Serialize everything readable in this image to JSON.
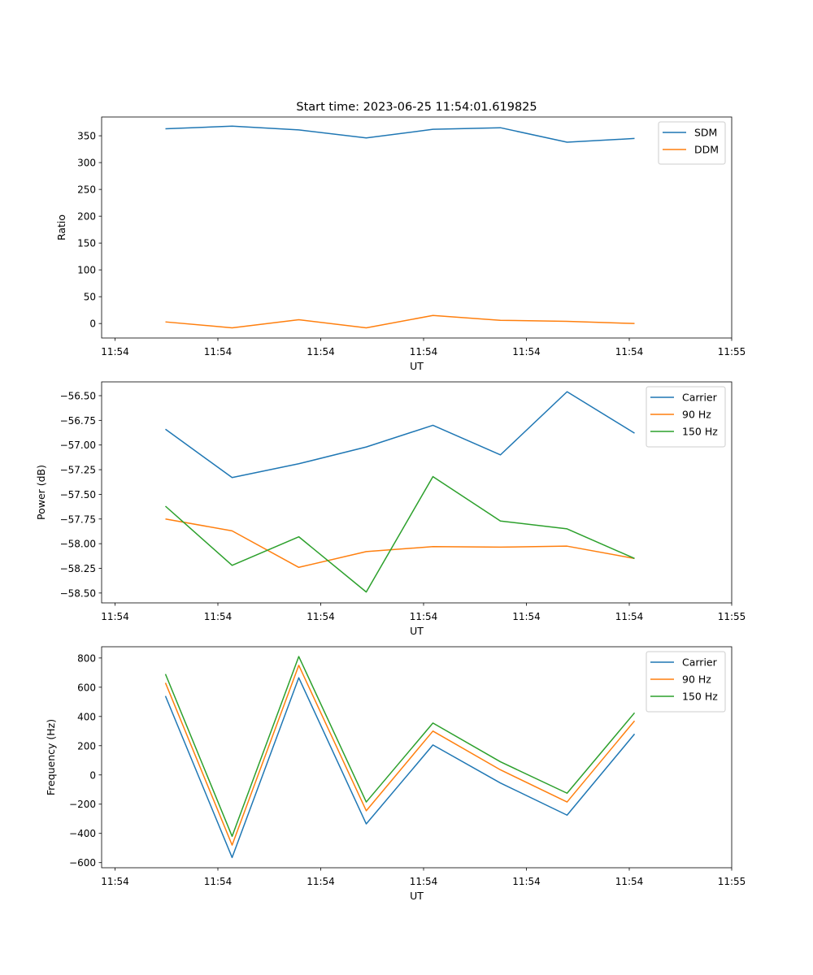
{
  "title": "Start time: 2023-06-25 11:54:01.619825",
  "colors": {
    "blue": "#1f77b4",
    "orange": "#ff7f0e",
    "green": "#2ca02c"
  },
  "x_tick_labels": [
    "11:54",
    "11:54",
    "11:54",
    "11:54",
    "11:54",
    "11:54",
    "11:55"
  ],
  "chart_data": [
    {
      "type": "line",
      "xlabel": "UT",
      "ylabel": "Ratio",
      "ylim": [
        -27,
        385
      ],
      "yticks": [
        0,
        50,
        100,
        150,
        200,
        250,
        300,
        350
      ],
      "ytick_labels": [
        "0",
        "50",
        "100",
        "150",
        "200",
        "250",
        "300",
        "350"
      ],
      "legend": "top-right",
      "grid": false,
      "series": [
        {
          "name": "SDM",
          "color": "#1f77b4",
          "values": [
            363,
            368,
            361,
            346,
            362,
            365,
            338,
            345
          ]
        },
        {
          "name": "DDM",
          "color": "#ff7f0e",
          "values": [
            3,
            -8,
            7,
            -8,
            15,
            6,
            4,
            0
          ]
        }
      ]
    },
    {
      "type": "line",
      "xlabel": "UT",
      "ylabel": "Power (dB)",
      "ylim": [
        -58.6,
        -56.36
      ],
      "yticks": [
        -58.5,
        -58.25,
        -58.0,
        -57.75,
        -57.5,
        -57.25,
        -57.0,
        -56.75,
        -56.5
      ],
      "ytick_labels": [
        "−58.50",
        "−58.25",
        "−58.00",
        "−57.75",
        "−57.50",
        "−57.25",
        "−57.00",
        "−56.75",
        "−56.50"
      ],
      "legend": "top-right",
      "grid": false,
      "series": [
        {
          "name": "Carrier",
          "color": "#1f77b4",
          "values": [
            -56.84,
            -57.33,
            -57.19,
            -57.02,
            -56.8,
            -57.1,
            -56.46,
            -56.88
          ]
        },
        {
          "name": "90 Hz",
          "color": "#ff7f0e",
          "values": [
            -57.75,
            -57.87,
            -58.24,
            -58.08,
            -58.03,
            -58.035,
            -58.025,
            -58.15
          ]
        },
        {
          "name": "150 Hz",
          "color": "#2ca02c",
          "values": [
            -57.62,
            -58.22,
            -57.93,
            -58.49,
            -57.32,
            -57.77,
            -57.85,
            -58.15
          ]
        }
      ]
    },
    {
      "type": "line",
      "xlabel": "UT",
      "ylabel": "Frequency (Hz)",
      "ylim": [
        -635,
        877
      ],
      "yticks": [
        -600,
        -400,
        -200,
        0,
        200,
        400,
        600,
        800
      ],
      "ytick_labels": [
        "−600",
        "−400",
        "−200",
        "0",
        "200",
        "400",
        "600",
        "800"
      ],
      "legend": "top-right",
      "grid": false,
      "series": [
        {
          "name": "Carrier",
          "color": "#1f77b4",
          "values": [
            540,
            -565,
            665,
            -335,
            205,
            -55,
            -275,
            280
          ]
        },
        {
          "name": "90 Hz",
          "color": "#ff7f0e",
          "values": [
            630,
            -480,
            750,
            -245,
            300,
            35,
            -185,
            370
          ]
        },
        {
          "name": "150 Hz",
          "color": "#2ca02c",
          "values": [
            690,
            -420,
            810,
            -185,
            355,
            90,
            -125,
            425
          ]
        }
      ]
    }
  ]
}
